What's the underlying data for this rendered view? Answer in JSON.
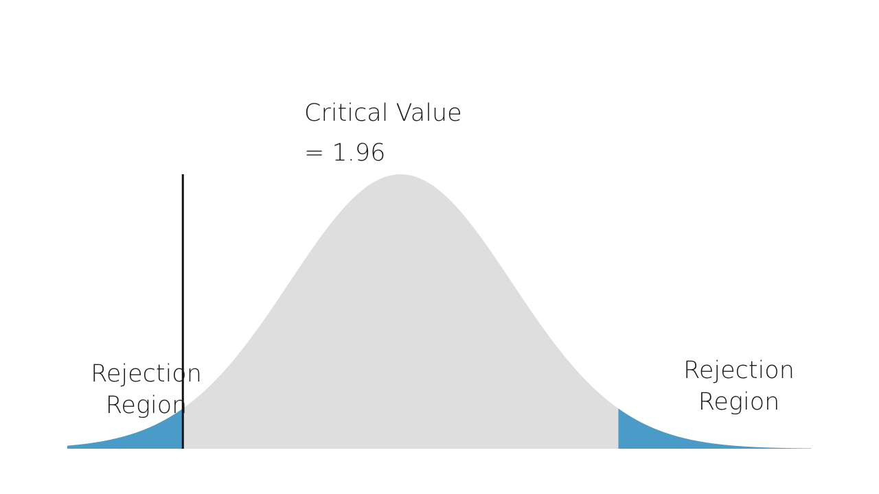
{
  "colors": {
    "rejection_fill": "#4a9bc7",
    "acceptance_fill": "#dedede",
    "critical_line": "#111111",
    "text": "#1c1c1c",
    "background": "#ffffff"
  },
  "critical_value": {
    "title": "Critical Value",
    "equation": "= 1.96",
    "z": -1.96
  },
  "regions": {
    "left_label_line1": "Rejection",
    "left_label_line2": "Region",
    "right_label_line1": "Rejection",
    "right_label_line2": "Region",
    "lower_bound_z": -1.96,
    "upper_bound_z": 1.96
  },
  "curve": {
    "distribution": "normal",
    "mean": 0,
    "sd": 1
  }
}
